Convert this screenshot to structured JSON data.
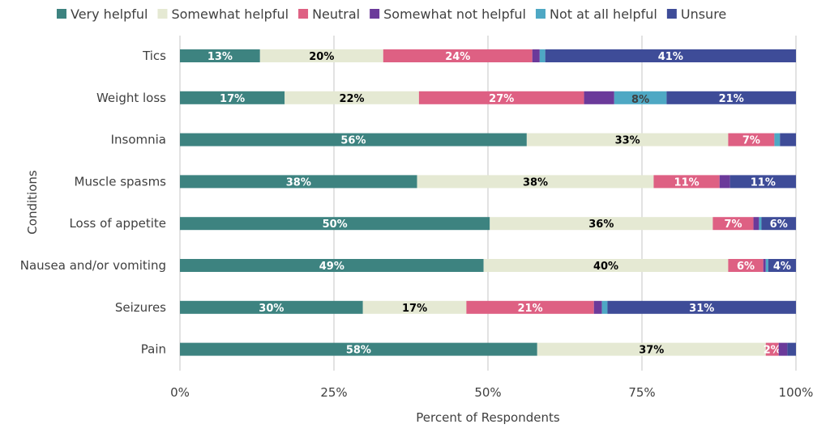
{
  "chart_data": {
    "type": "bar",
    "orientation": "horizontal",
    "stacked": true,
    "xlabel": "Percent of Respondents",
    "ylabel": "Conditions",
    "xlim": [
      0,
      100
    ],
    "xticks": [
      "0%",
      "25%",
      "50%",
      "75%",
      "100%"
    ],
    "grid": true,
    "legend_position": "top",
    "categories": [
      "Tics",
      "Weight loss",
      "Insomnia",
      "Muscle spasms",
      "Loss of appetite",
      "Nausea and/or vomiting",
      "Seizures",
      "Pain"
    ],
    "series": [
      {
        "name": "Very helpful",
        "color": "#3d8380",
        "label_color": "#ffffff",
        "values": [
          13,
          17,
          56.3,
          38.5,
          50.3,
          49.3,
          29.7,
          58
        ],
        "labels": [
          "13%",
          "17%",
          "56%",
          "38%",
          "50%",
          "49%",
          "30%",
          "58%"
        ]
      },
      {
        "name": "Somewhat helpful",
        "color": "#e5e9d3",
        "label_color": "#000000",
        "values": [
          20,
          21.8,
          32.7,
          38.4,
          36.2,
          39.7,
          16.8,
          37.1
        ],
        "labels": [
          "20%",
          "22%",
          "33%",
          "38%",
          "36%",
          "40%",
          "17%",
          "37%"
        ]
      },
      {
        "name": "Neutral",
        "color": "#de6083",
        "label_color": "#ffffff",
        "values": [
          24.2,
          26.8,
          7.5,
          10.7,
          6.6,
          5.7,
          20.7,
          2.1
        ],
        "labels": [
          "24%",
          "27%",
          "7%",
          "11%",
          "7%",
          "6%",
          "21%",
          "2%"
        ]
      },
      {
        "name": "Somewhat not helpful",
        "color": "#6b3a9a",
        "label_color": "#ffffff",
        "values": [
          1.2,
          4.9,
          0,
          1.7,
          0.9,
          0.4,
          1.3,
          1.4
        ],
        "labels": [
          null,
          null,
          null,
          null,
          null,
          null,
          null,
          null
        ]
      },
      {
        "name": "Not at all helpful",
        "color": "#4ea8c4",
        "label_color": "#404040",
        "values": [
          0.9,
          8.5,
          0.9,
          0,
          0.4,
          0.4,
          0.9,
          0
        ],
        "labels": [
          null,
          "8%",
          null,
          null,
          null,
          null,
          null,
          null
        ]
      },
      {
        "name": "Unsure",
        "color": "#3e4c98",
        "label_color": "#ffffff",
        "values": [
          40.7,
          21,
          2.6,
          10.7,
          5.6,
          4.5,
          30.6,
          1.4
        ],
        "labels": [
          "41%",
          "21%",
          null,
          "11%",
          "6%",
          "4%",
          "31%",
          null
        ]
      }
    ]
  }
}
